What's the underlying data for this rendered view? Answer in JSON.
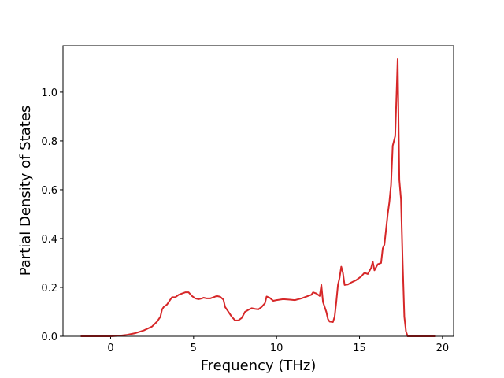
{
  "chart_data": {
    "type": "line",
    "x_label": "Frequency (THz)",
    "y_label": "Partial Density of States",
    "x": [
      -1.8,
      0,
      0.5,
      1,
      1.5,
      2,
      2.5,
      2.8,
      3.0,
      3.1,
      3.2,
      3.4,
      3.6,
      3.7,
      3.9,
      4.1,
      4.3,
      4.5,
      4.7,
      4.9,
      5.1,
      5.3,
      5.5,
      5.6,
      5.8,
      6.0,
      6.2,
      6.4,
      6.6,
      6.8,
      6.9,
      7.1,
      7.3,
      7.5,
      7.7,
      7.9,
      8.1,
      8.3,
      8.5,
      8.7,
      8.9,
      9.1,
      9.3,
      9.4,
      9.6,
      9.8,
      10.0,
      10.4,
      10.8,
      11.1,
      11.5,
      11.9,
      12.1,
      12.2,
      12.4,
      12.6,
      12.7,
      12.8,
      13.0,
      13.1,
      13.2,
      13.4,
      13.5,
      13.6,
      13.7,
      13.8,
      13.9,
      14.0,
      14.1,
      14.3,
      14.5,
      14.8,
      15.1,
      15.3,
      15.5,
      15.7,
      15.8,
      15.9,
      16.1,
      16.3,
      16.4,
      16.5,
      16.7,
      16.8,
      16.9,
      17.0,
      17.15,
      17.3,
      17.4,
      17.5,
      17.6,
      17.7,
      17.8,
      17.9,
      19.6
    ],
    "series": [
      {
        "color": "#d62728",
        "values": [
          0,
          0,
          0.002,
          0.006,
          0.013,
          0.024,
          0.04,
          0.06,
          0.08,
          0.11,
          0.12,
          0.13,
          0.15,
          0.16,
          0.16,
          0.17,
          0.175,
          0.18,
          0.18,
          0.165,
          0.155,
          0.152,
          0.155,
          0.158,
          0.155,
          0.155,
          0.16,
          0.165,
          0.162,
          0.15,
          0.12,
          0.1,
          0.08,
          0.065,
          0.065,
          0.075,
          0.1,
          0.108,
          0.115,
          0.112,
          0.11,
          0.12,
          0.135,
          0.163,
          0.157,
          0.145,
          0.148,
          0.152,
          0.15,
          0.148,
          0.155,
          0.165,
          0.17,
          0.18,
          0.175,
          0.165,
          0.21,
          0.14,
          0.1,
          0.07,
          0.06,
          0.058,
          0.08,
          0.14,
          0.21,
          0.24,
          0.285,
          0.26,
          0.21,
          0.212,
          0.22,
          0.23,
          0.245,
          0.26,
          0.255,
          0.28,
          0.305,
          0.27,
          0.295,
          0.3,
          0.36,
          0.375,
          0.5,
          0.55,
          0.62,
          0.78,
          0.82,
          1.135,
          0.64,
          0.56,
          0.3,
          0.08,
          0.02,
          0,
          0
        ]
      }
    ],
    "xlim": [
      -2.87,
      20.67
    ],
    "ylim": [
      0,
      1.19
    ],
    "xticks": [
      0,
      5,
      10,
      15,
      20
    ],
    "yticks": [
      {
        "value": 0,
        "label": "0.0"
      },
      {
        "value": 0.2,
        "label": "0.2"
      },
      {
        "value": 0.4,
        "label": "0.4"
      },
      {
        "value": 0.6,
        "label": "0.6"
      },
      {
        "value": 0.8,
        "label": "0.8"
      },
      {
        "value": 1.0,
        "label": "1.0"
      }
    ],
    "grid": false
  }
}
